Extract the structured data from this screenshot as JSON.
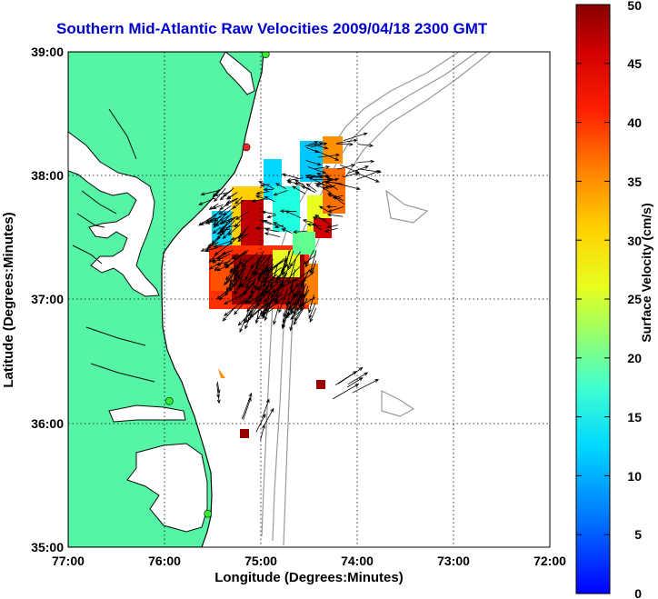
{
  "title": "Southern Mid-Atlantic Raw Velocities 2009/04/18 2300 GMT",
  "map": {
    "xlabel": "Longitude (Degrees:Minutes)",
    "ylabel": "Latitude (Degrees:Minutes)",
    "x_ticks": [
      "77:00",
      "76:00",
      "75:00",
      "74:00",
      "73:00",
      "72:00"
    ],
    "y_ticks": [
      "39:00",
      "38:00",
      "37:00",
      "36:00",
      "35:00"
    ],
    "lon_range": [
      -77,
      -72
    ],
    "lat_range": [
      35,
      39
    ],
    "colors": {
      "land": "#55f5a5",
      "water": "#ffffff",
      "coast": "#0a0a0a",
      "bathymetry": "#999999",
      "grid": "#000000",
      "vectors": "#000000"
    }
  },
  "colorbar": {
    "label": "Surface Velocity (cm/s)",
    "ticks": [
      "50",
      "45",
      "40",
      "35",
      "30",
      "25",
      "20",
      "15",
      "10",
      "5",
      "0"
    ],
    "min": 0,
    "max": 50,
    "colormap": "jet"
  },
  "stations": [
    {
      "lon": -74.95,
      "lat": 38.98,
      "color": "#33ee33"
    },
    {
      "lon": -75.15,
      "lat": 38.23,
      "color": "#ee2222"
    },
    {
      "lon": -75.95,
      "lat": 36.18,
      "color": "#33ee33"
    },
    {
      "lon": -75.55,
      "lat": 35.27,
      "color": "#33ee33"
    }
  ]
}
